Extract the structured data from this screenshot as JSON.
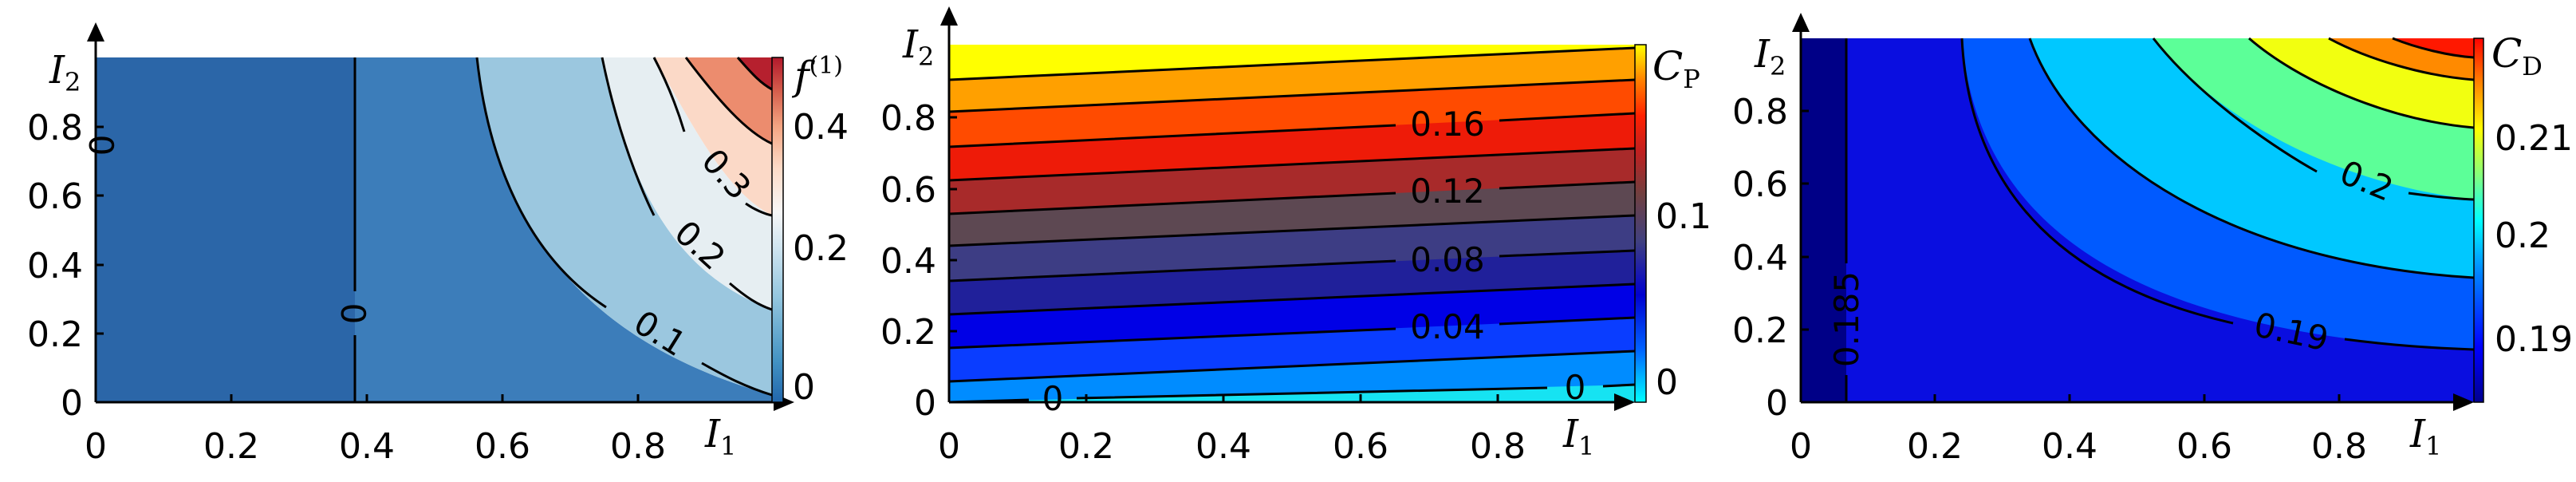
{
  "chart_data": [
    {
      "type": "contour",
      "xlabel": "I",
      "xlabel_sub": "1",
      "ylabel": "I",
      "ylabel_sub": "2",
      "colorbar_title": "f",
      "colorbar_sup": "(1)",
      "xlim": [
        0,
        1
      ],
      "ylim": [
        0,
        1
      ],
      "xticks": [
        "0",
        "0.2",
        "0.4",
        "0.6",
        "0.8"
      ],
      "yticks": [
        "0",
        "0.2",
        "0.4",
        "0.6",
        "0.8"
      ],
      "colorbar_range": [
        -0.03,
        0.47
      ],
      "colorbar_ticks": [
        {
          "value": 0,
          "label": "0"
        },
        {
          "value": 0.2,
          "label": "0.2"
        },
        {
          "value": 0.4,
          "label": "0.4"
        }
      ],
      "colormap": [
        "#2166ac",
        "#4393c3",
        "#92c5de",
        "#d1e5f0",
        "#f7f7f7",
        "#fddbc7",
        "#f4a582",
        "#d6604d",
        "#b2182b"
      ],
      "levels": [
        0,
        0.1,
        0.2,
        0.3,
        0.4
      ],
      "level_fills": [
        "#2b66a8",
        "#3c7dba",
        "#9bc7df",
        "#e6eef2",
        "#fbd9c7",
        "#ec8c6e",
        "#b6202e"
      ],
      "contour_labels": [
        "0",
        "0",
        "0.1",
        "0.2",
        "0.3"
      ]
    },
    {
      "type": "contour",
      "xlabel": "I",
      "xlabel_sub": "1",
      "ylabel": "I",
      "ylabel_sub": "2",
      "colorbar_title": "C",
      "colorbar_sub": "P",
      "xlim": [
        0,
        1
      ],
      "ylim": [
        0,
        1
      ],
      "xticks": [
        "0",
        "0.2",
        "0.4",
        "0.6",
        "0.8"
      ],
      "yticks": [
        "0",
        "0.2",
        "0.4",
        "0.6",
        "0.8"
      ],
      "colorbar_range": [
        -0.02,
        0.2
      ],
      "colorbar_ticks": [
        {
          "value": 0,
          "label": "0"
        },
        {
          "value": 0.1,
          "label": "0.1"
        }
      ],
      "colormap": [
        "#00ffff",
        "#0060ff",
        "#0000d0",
        "#404080",
        "#704040",
        "#c02020",
        "#ff2000",
        "#ff8000",
        "#ffff00"
      ],
      "levels": [
        0,
        0.02,
        0.04,
        0.06,
        0.08,
        0.1,
        0.12,
        0.14,
        0.16,
        0.18,
        0.2
      ],
      "level_fills": [
        "#16e3f2",
        "#008cff",
        "#0a3dff",
        "#0000e6",
        "#20209a",
        "#3d3d84",
        "#5d4852",
        "#a82a2a",
        "#ee1b08",
        "#ff4b00",
        "#ffa000",
        "#ffff00"
      ],
      "contour_labels": [
        "0",
        "0",
        "0.04",
        "0.08",
        "0.12",
        "0.16"
      ]
    },
    {
      "type": "contour",
      "xlabel": "I",
      "xlabel_sub": "1",
      "ylabel": "I",
      "ylabel_sub": "2",
      "colorbar_title": "C",
      "colorbar_sub": "D",
      "xlim": [
        0,
        1
      ],
      "ylim": [
        0,
        1
      ],
      "xticks": [
        "0",
        "0.2",
        "0.4",
        "0.6",
        "0.8"
      ],
      "yticks": [
        "0",
        "0.2",
        "0.4",
        "0.6",
        "0.8"
      ],
      "colorbar_range": [
        0.182,
        0.217
      ],
      "colorbar_ticks": [
        {
          "value": 0.19,
          "label": "0.19"
        },
        {
          "value": 0.2,
          "label": "0.2"
        },
        {
          "value": 0.21,
          "label": "0.21"
        }
      ],
      "colormap": [
        "#00008f",
        "#0000ff",
        "#0080ff",
        "#00ffff",
        "#80ff80",
        "#ffff00",
        "#ff8000",
        "#ff0000"
      ],
      "levels": [
        0.185,
        0.19,
        0.195,
        0.2,
        0.205,
        0.21,
        0.215
      ],
      "level_fills": [
        "#000087",
        "#0a0ee0",
        "#005aff",
        "#00c8ff",
        "#5cff98",
        "#f2ff10",
        "#ff8a00",
        "#ff1800"
      ],
      "contour_labels": [
        "0.185",
        "0.19",
        "0.2"
      ]
    }
  ]
}
